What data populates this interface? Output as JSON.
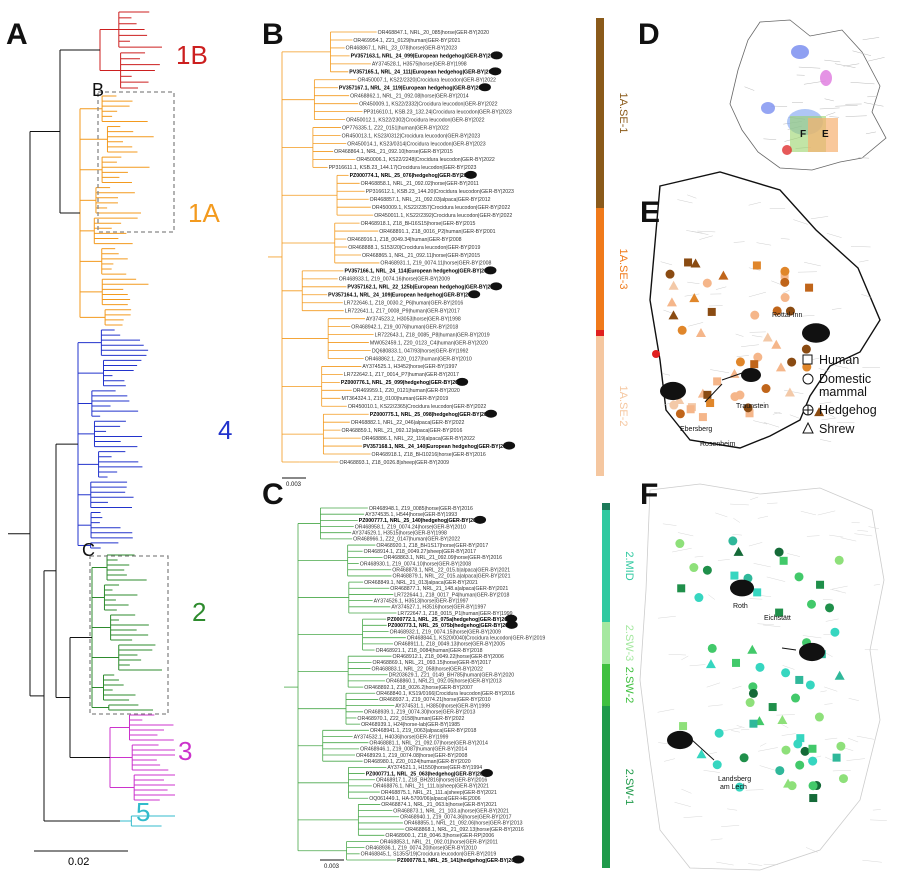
{
  "panels": {
    "A": {
      "letter": "A",
      "clades": [
        {
          "label": "1B",
          "color": "#cc1f1f"
        },
        {
          "label": "1A",
          "color": "#f39a1e"
        },
        {
          "label": "4",
          "color": "#2233cc"
        },
        {
          "label": "2",
          "color": "#2e8b2e"
        },
        {
          "label": "3",
          "color": "#cc33cc"
        },
        {
          "label": "5",
          "color": "#33bbcc"
        }
      ],
      "inset_labels": [
        "B",
        "C"
      ],
      "scale": "0.02"
    },
    "B": {
      "letter": "B",
      "scale": "0.003",
      "subclades": [
        {
          "label": "1A.SE-1",
          "color": "#8a5a1a"
        },
        {
          "label": "1A.SE-3",
          "color": "#f07a1a"
        },
        {
          "label": "1A.SE-2",
          "color": "#f5c7a0"
        }
      ],
      "leaves": [
        {
          "t": "OR468847.1, NRL_20_085|horse|GER-BY|2020",
          "b": false
        },
        {
          "t": "OR469954.1, Z21_0129|human|GER-BY|2021",
          "b": false
        },
        {
          "t": "OR468867.1, NRL_23_078|horse|GER-BY|2023",
          "b": false
        },
        {
          "t": "PV357163.1, NRL_24_099|European hedgehog|GER-BY|2024",
          "b": true
        },
        {
          "t": "AY374528.1, H3575|horse|GER-BY|1998",
          "b": false
        },
        {
          "t": "PV357165.1, NRL_24_111|European hedgehog|GER-BY|2024",
          "b": true
        },
        {
          "t": "OR450007.1, KS22/2320|Crocidura leucodon|GER-BY|2022",
          "b": false
        },
        {
          "t": "PV357167.1, NRL_24_119|European hedgehog|GER-BY|2024",
          "b": true
        },
        {
          "t": "OR468862.1, NRL_21_092.08|horse|GER-BY|2014",
          "b": false
        },
        {
          "t": "OR450009.1, KS22/2332|Crocidura leucodon|GER-BY|2022",
          "b": false
        },
        {
          "t": "PP316610.1, KSB.23_132.24|Crocidura leucodon|GER-BY|2023",
          "b": false
        },
        {
          "t": "OR450012.1, KS22/2302|Crocidura leucodon|GER-BY|2022",
          "b": false
        },
        {
          "t": "OP776335.1, Z22_0151|human|GER-BY|2022",
          "b": false
        },
        {
          "t": "OR450013.1, KS23/0312|Crocidura leucodon|GER-BY|2023",
          "b": false
        },
        {
          "t": "OR450014.1, KS23/0314|Crocidura leucodon|GER-BY|2023",
          "b": false
        },
        {
          "t": "OR468864.1, NRL_21_092.10|horse|GER-BY|2015",
          "b": false
        },
        {
          "t": "OR450006.1, KS22/2248|Crocidura leucodon|GER-BY|2022",
          "b": false
        },
        {
          "t": "PP316611.1, KSB.23_144.17|Crocidura leucodon|GER-BY|2023",
          "b": false
        },
        {
          "t": "PZ000774.1, NRL_25_076|hedgehog|GER-BY|2025",
          "b": true
        },
        {
          "t": "OR468858.1, NRL_21_092.02|horse|GER-BY|2011",
          "b": false
        },
        {
          "t": "PP316612.1, KSB.23_144.20|Crocidura leucodon|GER-BY|2023",
          "b": false
        },
        {
          "t": "OR468857.1, NRL_21_092.03|alpaca|GER-BY|2012",
          "b": false
        },
        {
          "t": "OR450009.1, KS22/2357|Crocidura leucodon|GER-BY|2022",
          "b": false
        },
        {
          "t": "OR450011.1, KS22/2392|Crocidura leucodon|GER-BY|2022",
          "b": false
        },
        {
          "t": "OR468918.1, Z18_BH16S15|horse|GER-BY|2015",
          "b": false
        },
        {
          "t": "OR468891.1, Z18_0016_P2|human|GER-BY|2001",
          "b": false
        },
        {
          "t": "OR468916.1, Z18_0049.34|human|GER-BY|2008",
          "b": false
        },
        {
          "t": "OR468888.1, S153/20|Crocidura leucodon|GER-BY|2019",
          "b": false
        },
        {
          "t": "OR468865.1, NRL_21_092.11|horse|GER-BY|2015",
          "b": false
        },
        {
          "t": "OR468931.1, Z19_0074.11|horse|GER-BY|2008",
          "b": false
        },
        {
          "t": "PV357166.1, NRL_24_114|European hedgehog|GER-BY|2024",
          "b": true
        },
        {
          "t": "OR468933.1, Z19_0074.16|horse|GER-BY|2009",
          "b": false
        },
        {
          "t": "PV357162.1, NRL_22_125b|European hedgehog|GER-BY|2022",
          "b": true
        },
        {
          "t": "PV357164.1, NRL_24_109|European hedgehog|GER-BY|2024",
          "b": true
        },
        {
          "t": "LR722646.1, Z18_0030.2_P6|human|GER-BY|2016",
          "b": false
        },
        {
          "t": "LR722641.1, Z17_0008_P9|human|GER-BY|2017",
          "b": false
        },
        {
          "t": "AY374523.2, H3053|horse|GER-BY|1998",
          "b": false
        },
        {
          "t": "OR468942.1, Z19_0076|human|GER-BY|2018",
          "b": false
        },
        {
          "t": "LR722643.1, Z18_0085_P8|human|GER-BY|2019",
          "b": false
        },
        {
          "t": "MW052459.1, Z20_0123_C4|human|GER-BY|2020",
          "b": false
        },
        {
          "t": "DQ680833.1, 047/93|horse|GER-BY|1992",
          "b": false
        },
        {
          "t": "OR468862.1, Z20_0127|human|GER-BY|2010",
          "b": false
        },
        {
          "t": "AY374525.1, H3452|horse|GER-BY|1997",
          "b": false
        },
        {
          "t": "LR722642.1, Z17_0014_P7|human|GER-BY|2017",
          "b": false
        },
        {
          "t": "PZ000776.1, NRL_25_099|hedgehog|GER-BY|2025",
          "b": true
        },
        {
          "t": "OR469959.1, Z20_0121|human|GER-BY|2020",
          "b": false
        },
        {
          "t": "MT364324.1, Z19_0100|human|GER-BY|2019",
          "b": false
        },
        {
          "t": "OR450010.1, KS22/2365|Crocidura leucodon|GER-BY|2022",
          "b": false
        },
        {
          "t": "PZ000775.1, NRL_25_098|hedgehog|GER-BY|2025",
          "b": true
        },
        {
          "t": "OR468882.1, NRL_22_046|alpaca|GER-BY|2022",
          "b": false
        },
        {
          "t": "OR468859.1, NRL_21_092.12|alpaca|GER-BY|2016",
          "b": false
        },
        {
          "t": "OR468886.1, NRL_22_119|alpaca|GER-BY|2022",
          "b": false
        },
        {
          "t": "PV357168.1, NRL_24_140|European hedgehog|GER-BY|2024",
          "b": true
        },
        {
          "t": "OR468918.1, Z18_BH10216|horse|GER-BY|2016",
          "b": false
        },
        {
          "t": "OR468893.1, Z18_0026.8|sheep|GER-BY|2009",
          "b": false
        }
      ]
    },
    "C": {
      "letter": "C",
      "scale": "0.003",
      "subclades": [
        {
          "label": "2.MID",
          "color": "#2fc9a0"
        },
        {
          "label": "2.SW-3",
          "color": "#a5e8a0"
        },
        {
          "label": "2.SW-2",
          "color": "#40c040"
        },
        {
          "label": "2.SW-1",
          "color": "#1f9a4a"
        }
      ],
      "leaves": [
        {
          "t": "OR468948.1, Z19_0085|horse|GER-BY|2016",
          "b": false
        },
        {
          "t": "AY374535.1, H544|horse|GER-BY|1993",
          "b": false
        },
        {
          "t": "PZ000777.1, NRL_25_140|hedgehog|GER-BY|2025",
          "b": true
        },
        {
          "t": "OR468958.1, Z19_0074.24|horse|GER-BY|2010",
          "b": false
        },
        {
          "t": "AY374529.1, H3515|horse|GER-BY|1998",
          "b": false
        },
        {
          "t": "OR468966.1, Z22_0147|human|GER-BY|2022",
          "b": false
        },
        {
          "t": "OR468920.1, Z18_BH1S17|horse|GER-BY|2017",
          "b": false
        },
        {
          "t": "OR468914.1, Z18_0049.27|sheep|GER-BY|2017",
          "b": false
        },
        {
          "t": "OR468863.1, NRL_21_092.09|horse|GER-BY|2016",
          "b": false
        },
        {
          "t": "OR468930.1, Z19_0074.10|horse|GER-BY|2008",
          "b": false
        },
        {
          "t": "OR468878.1, NRL_22_015.b|alpaca|GER-BY|2021",
          "b": false
        },
        {
          "t": "OR468879.1, NRL_22_015.a|alpaca|GER-BY|2021",
          "b": false
        },
        {
          "t": "OR468849.1, NRL_21_013|alpaca|GER-BY|2021",
          "b": false
        },
        {
          "t": "OR468877.1, NRL_21_148.a|alpaca|GER-BY|2021",
          "b": false
        },
        {
          "t": "LR722644.1, Z18_0017_P4|human|GER-BY|2018",
          "b": false
        },
        {
          "t": "AY374526.1, H3513|horse|GER-BY|1997",
          "b": false
        },
        {
          "t": "AY374527.1, H3516|horse|GER-BY|1997",
          "b": false
        },
        {
          "t": "LR722647.1, Z18_0015_P1|human|GER-BY|1999",
          "b": false
        },
        {
          "t": "PZ000772.1, NRL_25_075a|hedgehog|GER-BY|2025",
          "b": true
        },
        {
          "t": "PZ000773.1, NRL_25_075b|hedgehog|GER-BY|2025",
          "b": true
        },
        {
          "t": "OR468932.1, Z19_0074.15|horse|GER-BY|2009",
          "b": false
        },
        {
          "t": "OR468844.1, KS20/0040|Crocidura leucodon|GER-BY|2019",
          "b": false
        },
        {
          "t": "OR468911.1, Z18_0049.13|horse|GER-BY|2005",
          "b": false
        },
        {
          "t": "OR468921.1, Z18_0084|human|GER-BY|2018",
          "b": false
        },
        {
          "t": "OR468912.1, Z18_0049.22|horse|GER-BY|2006",
          "b": false
        },
        {
          "t": "OR468869.1, NRL_21_093.15|horse|GER-BY|2017",
          "b": false
        },
        {
          "t": "OR468883.1, NRL_22_058|horse|GER-BY|2022",
          "b": false
        },
        {
          "t": "DR203629.1, Z21_0149_BH785|human|GER-BY|2020",
          "b": false
        },
        {
          "t": "OR468860.1, NRL21_092.05|horse|GER-BY|2013",
          "b": false
        },
        {
          "t": "OR468892.1, Z18_0026.2|horse|GER-BY|2007",
          "b": false
        },
        {
          "t": "OR468840.1, KS19/0166|Crocidura leucodon|GER-BY|2016",
          "b": false
        },
        {
          "t": "OR468937.1, Z19_0074.21|horse|GER-BY|2010",
          "b": false
        },
        {
          "t": "AY374531.1, H3850|horse|GER-BY|1999",
          "b": false
        },
        {
          "t": "OR468939.1, Z19_0074.30|horse|GER-BY|2013",
          "b": false
        },
        {
          "t": "OR468970.1, Z22_0158|human|GER-BY|2022",
          "b": false
        },
        {
          "t": "OR468939.1, H24|horse-lab|GER-BY|1985",
          "b": false
        },
        {
          "t": "OR468941.1, Z19_0063|alpaca|GER-BY|2018",
          "b": false
        },
        {
          "t": "AY374532.1, H4036|horse|GER-BY|1999",
          "b": false
        },
        {
          "t": "OR468881.1, NRL_21_092.07|horse|GER-BY|2014",
          "b": false
        },
        {
          "t": "OR468946.1, Z19_0087|human|GER-BY|2014",
          "b": false
        },
        {
          "t": "OR468929.1, Z19_0074.08|horse|GER-BY|2008",
          "b": false
        },
        {
          "t": "OR468980.1, Z20_0124|human|GER-BY|2020",
          "b": false
        },
        {
          "t": "AY374521.1, H1550|horse|GER-BY|1994",
          "b": false
        },
        {
          "t": "PZ000771.1, NRL_25_063|hedgehog|GER-BY|2025",
          "b": true
        },
        {
          "t": "OR468917.1, Z18_BH2816|horse|GER-BY|2016",
          "b": false
        },
        {
          "t": "OR468876.1, NRL_21_111.b|sheep|GER-BY|2021",
          "b": false
        },
        {
          "t": "OR468875.1, NRL_21_111.a|sheep|GER-BY|2021",
          "b": false
        },
        {
          "t": "OQ061449.1, HA-5700/06|alpaca|GER-HE|2006",
          "b": false
        },
        {
          "t": "OR468874.1, NRL_21_063.b|horse|GER-BY|2021",
          "b": false
        },
        {
          "t": "OR468873.1, NRL_21_103.a|horse|GER-BY|2021",
          "b": false
        },
        {
          "t": "OR468940.1, Z19_0074.36|horse|GER-BY|2017",
          "b": false
        },
        {
          "t": "OR468855.1, NRL_21_092.06|horse|GER-BY|2013",
          "b": false
        },
        {
          "t": "OR468868.1, NRL_21_092.13|horse|GER-BY|2016",
          "b": false
        },
        {
          "t": "OR468900.1, Z18_0046.3|horse|GER-RP|2006",
          "b": false
        },
        {
          "t": "OR468853.1, NRL_21_092.01|horse|GER-BY|2011",
          "b": false
        },
        {
          "t": "OR468936.1, Z19_0074.20|horse|GER-BY|2010",
          "b": false
        },
        {
          "t": "OR468845.1, S135S/19|Crocidura leucodon|GER-BY|2019",
          "b": false
        },
        {
          "t": "PZ000778.1, NRL_25_141|hedgehog|GER-BY|2025",
          "b": true
        }
      ]
    },
    "D": {
      "letter": "D",
      "inset_labels": [
        "F",
        "E"
      ]
    },
    "E": {
      "letter": "E",
      "places": [
        "Rottal-Inn",
        "Ebersberg",
        "Traunstein",
        "Rosenheim"
      ],
      "legend": [
        {
          "shape": "square",
          "label": "Human"
        },
        {
          "shape": "circle",
          "label": "Domestic"
        },
        {
          "shape": "none",
          "label": "mammal"
        },
        {
          "shape": "plus-circle",
          "label": "Hedgehog"
        },
        {
          "shape": "triangle",
          "label": "Shrew"
        }
      ]
    },
    "F": {
      "letter": "F",
      "places": [
        "Roth",
        "Eichstätt",
        "Landsberg",
        "am Lech"
      ]
    }
  }
}
